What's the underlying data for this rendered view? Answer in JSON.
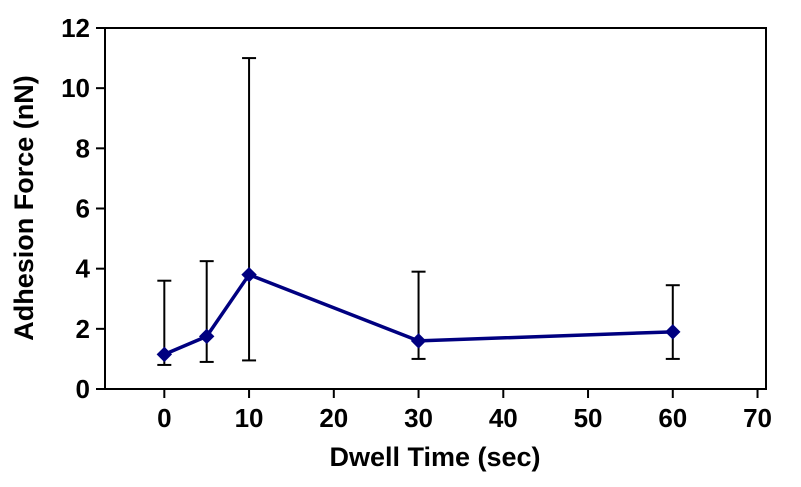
{
  "chart_data": {
    "type": "line",
    "title": "",
    "xlabel": "Dwell Time (sec)",
    "ylabel": "Adhesion Force (nN)",
    "x": [
      0,
      5,
      10,
      30,
      60
    ],
    "y": [
      1.15,
      1.75,
      3.8,
      1.6,
      1.9
    ],
    "error_low": [
      0.8,
      0.9,
      0.95,
      1.0,
      1.0
    ],
    "error_high": [
      3.6,
      4.25,
      11.0,
      3.9,
      3.45
    ],
    "xlim": [
      -7,
      71
    ],
    "ylim": [
      0,
      12
    ],
    "x_ticks": [
      0,
      10,
      20,
      30,
      40,
      50,
      60,
      70
    ],
    "y_ticks": [
      0,
      2,
      4,
      6,
      8,
      10,
      12
    ],
    "grid": false,
    "legend_position": "none",
    "line_color": "#000080",
    "marker": "diamond",
    "error_bar_color": "#000000",
    "plot_border_color": "#000000",
    "background_color": "#ffffff"
  }
}
